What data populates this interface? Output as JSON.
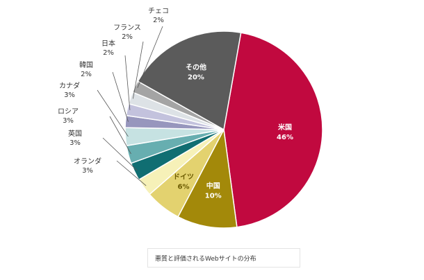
{
  "chart_data": {
    "type": "pie",
    "caption": "悪質と評価されるWebサイトの分布",
    "slices": [
      {
        "label": "米国",
        "value": 46,
        "value_label": "46%",
        "color": "#c1093f"
      },
      {
        "label": "中国",
        "value": 10,
        "value_label": "10%",
        "color": "#a3890a"
      },
      {
        "label": "ドイツ",
        "value": 6,
        "value_label": "6%",
        "color": "#e3d26f"
      },
      {
        "label": "オランダ",
        "value": 3,
        "value_label": "3%",
        "color": "#f6f1b8"
      },
      {
        "label": "英国",
        "value": 3,
        "value_label": "3%",
        "color": "#106e72"
      },
      {
        "label": "ロシア",
        "value": 3,
        "value_label": "3%",
        "color": "#67aeb0"
      },
      {
        "label": "カナダ",
        "value": 3,
        "value_label": "3%",
        "color": "#c6e2e2"
      },
      {
        "label": "韓国",
        "value": 2,
        "value_label": "2%",
        "color": "#9796bd"
      },
      {
        "label": "日本",
        "value": 2,
        "value_label": "2%",
        "color": "#c3c2dd"
      },
      {
        "label": "フランス",
        "value": 2,
        "value_label": "2%",
        "color": "#dde2e6"
      },
      {
        "label": "チェコ",
        "value": 2,
        "value_label": "2%",
        "color": "#a4a4a4"
      },
      {
        "label": "その他",
        "value": 20,
        "value_label": "20%",
        "color": "#5b5b5b"
      }
    ]
  }
}
